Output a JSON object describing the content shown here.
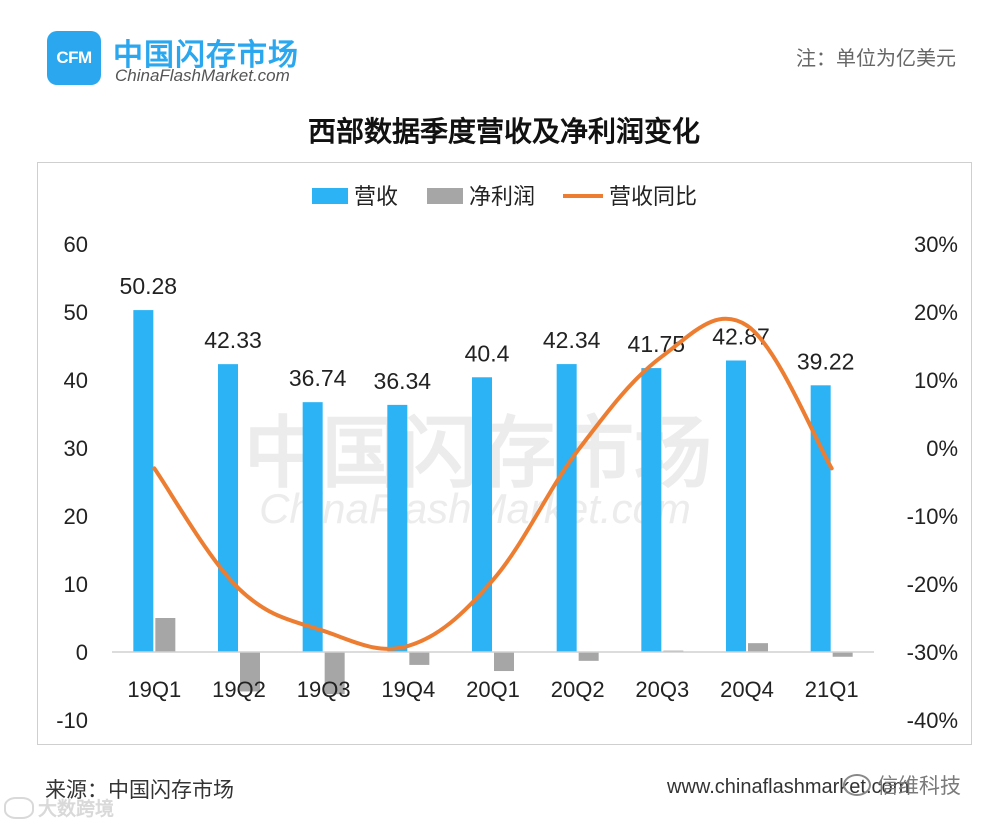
{
  "brand": {
    "logo_text": "CFM",
    "name_cn": "中国闪存市场",
    "name_en": "ChinaFlashMarket.com"
  },
  "note": "注：单位为亿美元",
  "footer": {
    "source": "来源：中国闪存市场",
    "url": "www.chinaflashmarket.com",
    "wechat_label": "信维科技",
    "corner_watermark": "大数跨境"
  },
  "colors": {
    "revenue": "#2bb3f5",
    "net_profit": "#a6a6a6",
    "yoy": "#ed7d31",
    "brand": "#2aa7ee"
  },
  "chart_data": {
    "type": "bar",
    "title": "西部数据季度营收及净利润变化",
    "categories": [
      "19Q1",
      "19Q2",
      "19Q3",
      "19Q4",
      "20Q1",
      "20Q2",
      "20Q3",
      "20Q4",
      "21Q1"
    ],
    "series": [
      {
        "name": "营收",
        "type": "bar",
        "axis": "left",
        "values": [
          50.28,
          42.33,
          36.74,
          36.34,
          40.4,
          42.34,
          41.75,
          42.87,
          39.22
        ],
        "labels": [
          "50.28",
          "42.33",
          "36.74",
          "36.34",
          "40.4",
          "42.34",
          "41.75",
          "42.87",
          "39.22"
        ]
      },
      {
        "name": "净利润",
        "type": "bar",
        "axis": "left",
        "values": [
          5.0,
          -5.8,
          -6.2,
          -1.9,
          -2.8,
          -1.3,
          0.2,
          1.3,
          -0.7
        ]
      },
      {
        "name": "营收同比",
        "type": "line",
        "axis": "right",
        "values": [
          -3.0,
          -20.7,
          -26.9,
          -29.1,
          -19.4,
          -0.4,
          13.5,
          18.0,
          -3.0
        ]
      }
    ],
    "y_left": {
      "min": -10,
      "max": 60,
      "step": 10,
      "ticks": [
        "-10",
        "0",
        "10",
        "20",
        "30",
        "40",
        "50",
        "60"
      ]
    },
    "y_right": {
      "min": -40,
      "max": 30,
      "step": 10,
      "ticks": [
        "-40%",
        "-30%",
        "-20%",
        "-10%",
        "0%",
        "10%",
        "20%",
        "30%"
      ]
    },
    "legend": [
      "营收",
      "净利润",
      "营收同比"
    ],
    "legend_position": "top-center",
    "watermark": {
      "cn": "中国闪存市场",
      "en": "ChinaFlashMarket.com"
    },
    "grid": false
  }
}
